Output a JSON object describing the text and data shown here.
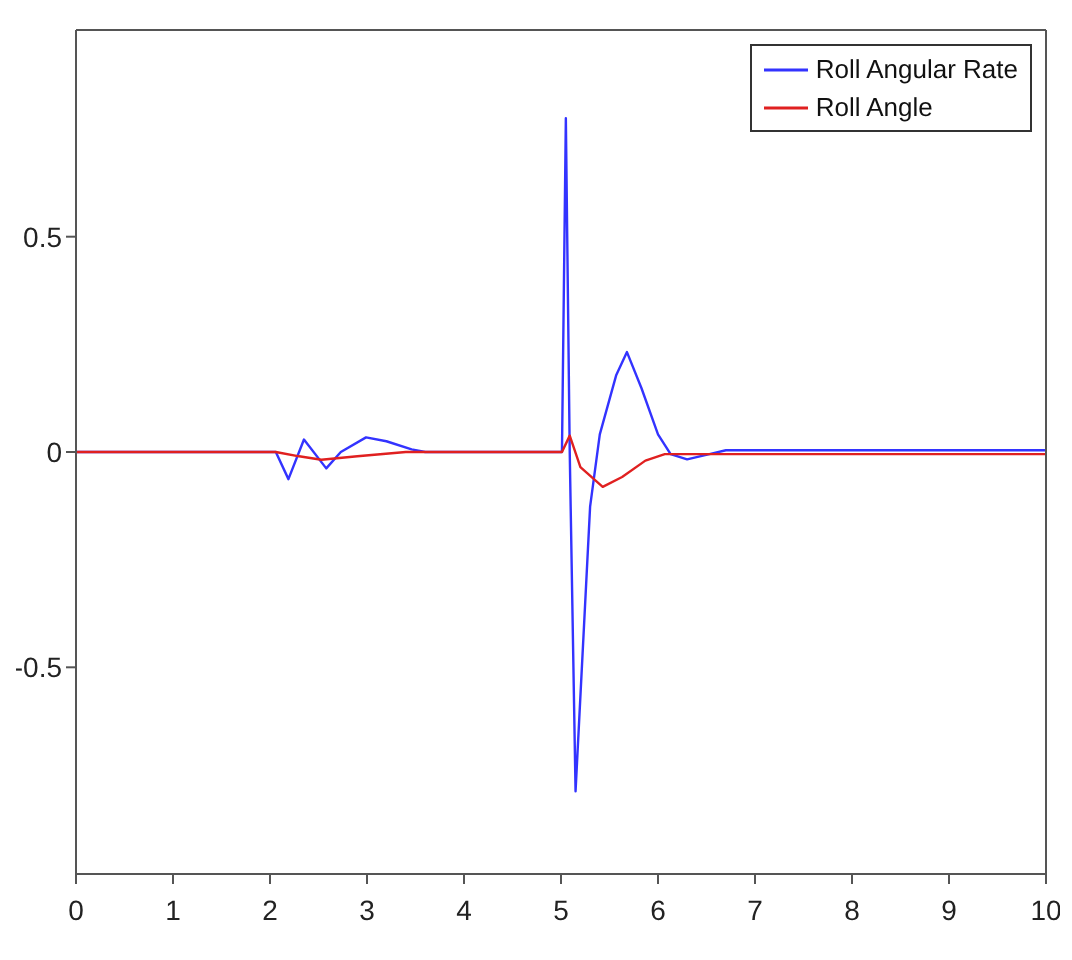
{
  "chart_data": {
    "type": "line",
    "xlim": [
      0,
      10
    ],
    "xticks": [
      0,
      1,
      2,
      3,
      4,
      5,
      6,
      7,
      8,
      9,
      10
    ],
    "ylim": [
      -0.98,
      0.98
    ],
    "yticks": [
      -0.5,
      0,
      0.5
    ],
    "grid": false,
    "legend": "top right",
    "marker": "none",
    "line_style": "solid",
    "series": [
      {
        "name": "Roll Angular Rate",
        "color": "#3333ff",
        "x": [
          0,
          2.06,
          2.19,
          2.35,
          2.58,
          2.73,
          2.99,
          3.2,
          3.46,
          3.6,
          5.01,
          5.05,
          5.09,
          5.15,
          5.3,
          5.4,
          5.57,
          5.68,
          5.83,
          6.0,
          6.13,
          6.3,
          6.53,
          6.7,
          8,
          10
        ],
        "values": [
          0,
          0,
          -0.063,
          0.029,
          -0.038,
          0,
          0.034,
          0.025,
          0.006,
          0,
          0,
          0.775,
          0,
          -0.788,
          -0.127,
          0.041,
          0.179,
          0.232,
          0.148,
          0.041,
          -0.005,
          -0.017,
          -0.005,
          0.004,
          0.004,
          0.004
        ]
      },
      {
        "name": "Roll Angle",
        "color": "#e02020",
        "x": [
          0,
          2.06,
          2.3,
          2.53,
          2.9,
          3.4,
          5.01,
          5.09,
          5.2,
          5.43,
          5.63,
          5.87,
          6.07,
          8,
          10
        ],
        "values": [
          0,
          0,
          -0.01,
          -0.018,
          -0.01,
          0,
          0,
          0.038,
          -0.035,
          -0.081,
          -0.058,
          -0.02,
          -0.005,
          -0.005,
          -0.005
        ]
      }
    ]
  }
}
